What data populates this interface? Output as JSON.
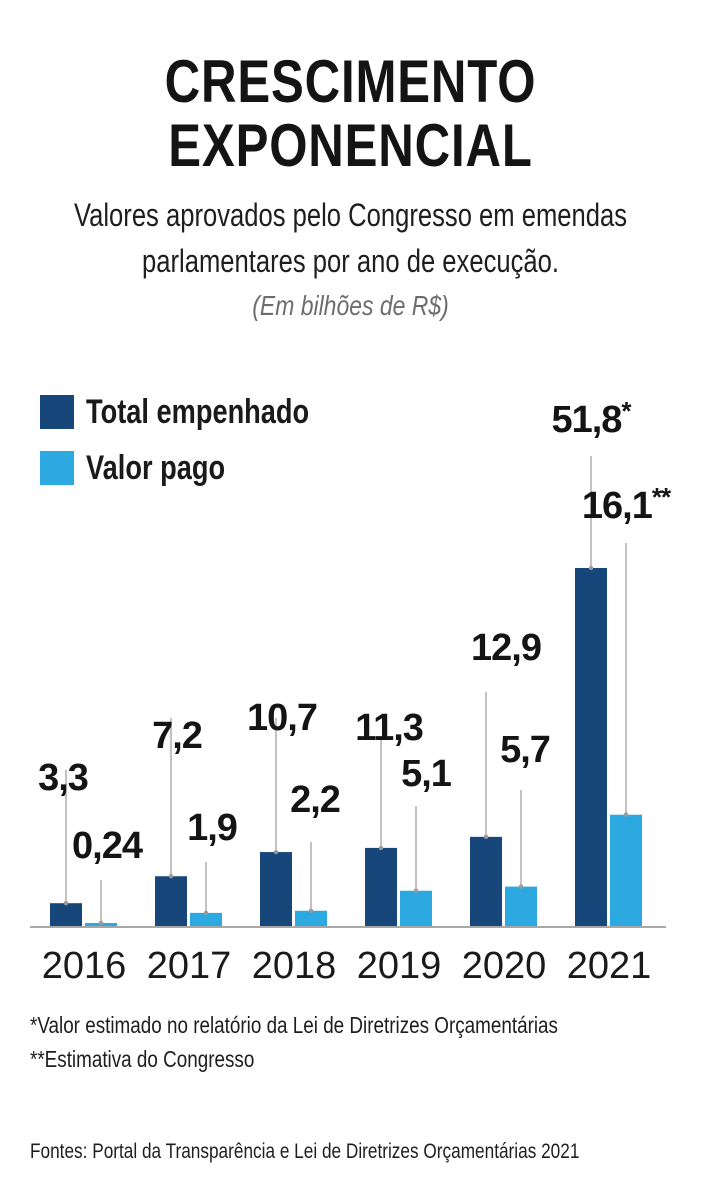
{
  "header": {
    "title_line1": "CRESCIMENTO",
    "title_line2": "EXPONENCIAL",
    "subtitle_line1": "Valores aprovados pelo Congresso em emendas",
    "subtitle_line2": "parlamentares por ano de execução.",
    "unit": "(Em bilhões de R$)"
  },
  "legend": [
    {
      "label": "Total empenhado",
      "color": "#17467a"
    },
    {
      "label": "Valor pago",
      "color": "#2ba9e0"
    }
  ],
  "chart_data": {
    "type": "bar",
    "title": "CRESCIMENTO EXPONENCIAL",
    "subtitle": "Valores aprovados pelo Congresso em emendas parlamentares por ano de execução.",
    "ylabel": "(Em bilhões de R$)",
    "categories": [
      "2016",
      "2017",
      "2018",
      "2019",
      "2020",
      "2021"
    ],
    "series": [
      {
        "name": "Total empenhado",
        "color": "#17467a",
        "values": [
          3.3,
          7.2,
          10.7,
          11.3,
          12.9,
          51.8
        ],
        "labels": [
          "3,3",
          "7,2",
          "10,7",
          "11,3",
          "12,9",
          "51,8*"
        ]
      },
      {
        "name": "Valor pago",
        "color": "#2ba9e0",
        "values": [
          0.24,
          1.9,
          2.2,
          5.1,
          5.7,
          16.1
        ],
        "labels": [
          "0,24",
          "1,9",
          "2,2",
          "5,1",
          "5,7",
          "16,1**"
        ]
      }
    ],
    "ylim": [
      0,
      52
    ],
    "grid": false,
    "legend_position": "top-left"
  },
  "footnotes": {
    "note1": "*Valor estimado no relatório da Lei de Diretrizes Orçamentárias",
    "note2": "**Estimativa do Congresso",
    "sources": "Fontes: Portal da Transparência e Lei de Diretrizes Orçamentárias 2021"
  }
}
